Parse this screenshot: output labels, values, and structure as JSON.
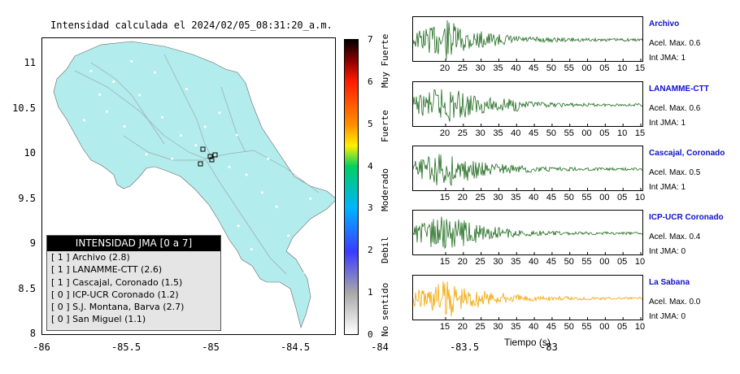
{
  "map": {
    "title": "Intensidad calculada el 2024/02/05_08:31:20_a.m.",
    "lat_ticks": [
      {
        "v": 11,
        "label": "11"
      },
      {
        "v": 10.5,
        "label": "10.5"
      },
      {
        "v": 10,
        "label": "10"
      },
      {
        "v": 9.5,
        "label": "9.5"
      },
      {
        "v": 9,
        "label": "9"
      },
      {
        "v": 8.5,
        "label": "8.5"
      },
      {
        "v": 8,
        "label": "8"
      }
    ],
    "lon_ticks": [
      {
        "v": -86,
        "label": "-86"
      },
      {
        "v": -85.5,
        "label": "-85.5"
      },
      {
        "v": -85,
        "label": "-85"
      },
      {
        "v": -84.5,
        "label": "-84.5"
      },
      {
        "v": -84,
        "label": "-84"
      },
      {
        "v": -83.5,
        "label": "-83.5"
      },
      {
        "v": -83,
        "label": "-83"
      }
    ],
    "land_color": "#b3ecec",
    "legend": {
      "title": "INTENSIDAD JMA [0 a 7]",
      "items": [
        "[ 1 ]  Archivo (2.8)",
        "[ 1 ]  LANAMME-CTT (2.6)",
        "[ 1 ]  Cascajal, Coronado (1.5)",
        "[ 0 ]  ICP-UCR Coronado (1.2)",
        "[ 0 ]  S.J. Montana, Barva (2.7)",
        "[ 0 ]  San Miguel (1.1)"
      ]
    }
  },
  "colorbar": {
    "ticks": [
      "0",
      "1",
      "2",
      "3",
      "4",
      "5",
      "6",
      "7"
    ],
    "labels": [
      "No sentido",
      "Debil",
      "Moderado",
      "Fuerte",
      "Muy Fuerte"
    ]
  },
  "chart_data": [
    {
      "type": "line",
      "station": "Archivo",
      "accel_label": "Acel. Max. 0.6",
      "int_label": "Int JMA: 1",
      "x_ticks": [
        "20",
        "25",
        "30",
        "35",
        "40",
        "45",
        "50",
        "55",
        "00",
        "05",
        "10",
        "15"
      ],
      "color": "#1f6b1f"
    },
    {
      "type": "line",
      "station": "LANAMME-CTT",
      "accel_label": "Acel. Max. 0.6",
      "int_label": "Int JMA: 1",
      "x_ticks": [
        "20",
        "25",
        "30",
        "35",
        "40",
        "45",
        "50",
        "55",
        "00",
        "05",
        "10",
        "15"
      ],
      "color": "#1f6b1f"
    },
    {
      "type": "line",
      "station": "Cascajal, Coronado",
      "accel_label": "Acel. Max. 0.5",
      "int_label": "Int JMA: 1",
      "x_ticks": [
        "15",
        "20",
        "25",
        "30",
        "35",
        "40",
        "45",
        "50",
        "55",
        "00",
        "05",
        "10"
      ],
      "color": "#1f6b1f"
    },
    {
      "type": "line",
      "station": "ICP-UCR Coronado",
      "accel_label": "Acel. Max. 0.4",
      "int_label": "Int JMA: 0",
      "x_ticks": [
        "15",
        "20",
        "25",
        "30",
        "35",
        "40",
        "45",
        "50",
        "55",
        "00",
        "05",
        "10"
      ],
      "color": "#1f6b1f"
    },
    {
      "type": "line",
      "station": "La Sabana",
      "accel_label": "Acel. Max. 0.0",
      "int_label": "Int JMA: 0",
      "x_ticks": [
        "15",
        "20",
        "25",
        "30",
        "35",
        "40",
        "45",
        "50",
        "55",
        "00",
        "05",
        "10"
      ],
      "color": "#f2a400"
    }
  ],
  "waveforms": {
    "xlabel": "Tiempo (s)"
  }
}
